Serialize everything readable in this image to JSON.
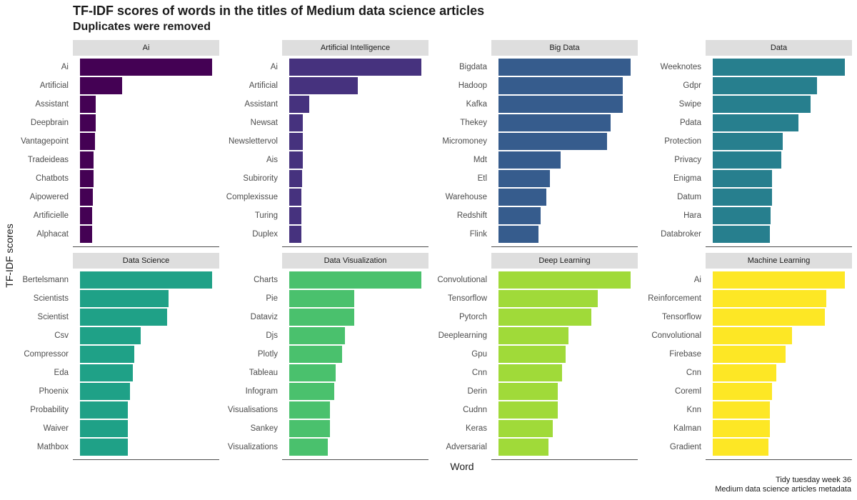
{
  "title": "TF-IDF scores of words in the titles of Medium data science articles",
  "subtitle": "Duplicates were removed",
  "caption": [
    "Tidy tuesday week 36",
    "Medium data science articles metadata"
  ],
  "chart_data": {
    "type": "bar",
    "orientation": "horizontal",
    "xlabel": "Word",
    "ylabel": "TF-IDF scores",
    "scale_max": 1.0,
    "panels": [
      {
        "name": "Ai",
        "color": "#440154",
        "categories": [
          "Ai",
          "Artificial",
          "Assistant",
          "Deepbrain",
          "Vantagepoint",
          "Tradeideas",
          "Chatbots",
          "Aipowered",
          "Artificielle",
          "Alphacat"
        ],
        "values": [
          1.0,
          0.32,
          0.12,
          0.12,
          0.115,
          0.105,
          0.1,
          0.095,
          0.09,
          0.09
        ]
      },
      {
        "name": "Artificial Intelligence",
        "color": "#46327E",
        "categories": [
          "Ai",
          "Artificial",
          "Assistant",
          "Newsat",
          "Newslettervol",
          "Ais",
          "Subirority",
          "Complexissue",
          "Turing",
          "Duplex"
        ],
        "values": [
          1.0,
          0.52,
          0.15,
          0.1,
          0.1,
          0.1,
          0.095,
          0.09,
          0.09,
          0.09
        ]
      },
      {
        "name": "Big Data",
        "color": "#365C8D",
        "categories": [
          "Bigdata",
          "Hadoop",
          "Kafka",
          "Thekey",
          "Micromoney",
          "Mdt",
          "Etl",
          "Warehouse",
          "Redshift",
          "Flink"
        ],
        "values": [
          1.0,
          0.94,
          0.94,
          0.85,
          0.82,
          0.47,
          0.39,
          0.36,
          0.32,
          0.3
        ]
      },
      {
        "name": "Data",
        "color": "#277F8E",
        "categories": [
          "Weeknotes",
          "Gdpr",
          "Swipe",
          "Pdata",
          "Protection",
          "Privacy",
          "Enigma",
          "Datum",
          "Hara",
          "Databroker"
        ],
        "values": [
          1.0,
          0.79,
          0.74,
          0.65,
          0.53,
          0.52,
          0.45,
          0.45,
          0.44,
          0.43
        ]
      },
      {
        "name": "Data Science",
        "color": "#1FA187",
        "categories": [
          "Bertelsmann",
          "Scientists",
          "Scientist",
          "Csv",
          "Compressor",
          "Eda",
          "Phoenix",
          "Probability",
          "Waiver",
          "Mathbox"
        ],
        "values": [
          1.0,
          0.67,
          0.66,
          0.46,
          0.41,
          0.4,
          0.38,
          0.36,
          0.36,
          0.36
        ]
      },
      {
        "name": "Data Visualization",
        "color": "#4AC16D",
        "categories": [
          "Charts",
          "Pie",
          "Dataviz",
          "Djs",
          "Plotly",
          "Tableau",
          "Infogram",
          "Visualisations",
          "Sankey",
          "Visualizations"
        ],
        "values": [
          1.0,
          0.49,
          0.49,
          0.42,
          0.4,
          0.35,
          0.34,
          0.31,
          0.31,
          0.29
        ]
      },
      {
        "name": "Deep Learning",
        "color": "#A0DA39",
        "categories": [
          "Convolutional",
          "Tensorflow",
          "Pytorch",
          "Deeplearning",
          "Gpu",
          "Cnn",
          "Derin",
          "Cudnn",
          "Keras",
          "Adversarial"
        ],
        "values": [
          1.0,
          0.75,
          0.7,
          0.53,
          0.51,
          0.48,
          0.45,
          0.45,
          0.41,
          0.38
        ]
      },
      {
        "name": "Machine Learning",
        "color": "#FDE725",
        "categories": [
          "Ai",
          "Reinforcement",
          "Tensorflow",
          "Convolutional",
          "Firebase",
          "Cnn",
          "Coreml",
          "Knn",
          "Kalman",
          "Gradient"
        ],
        "values": [
          1.0,
          0.86,
          0.85,
          0.6,
          0.55,
          0.48,
          0.45,
          0.43,
          0.43,
          0.42
        ]
      }
    ]
  }
}
